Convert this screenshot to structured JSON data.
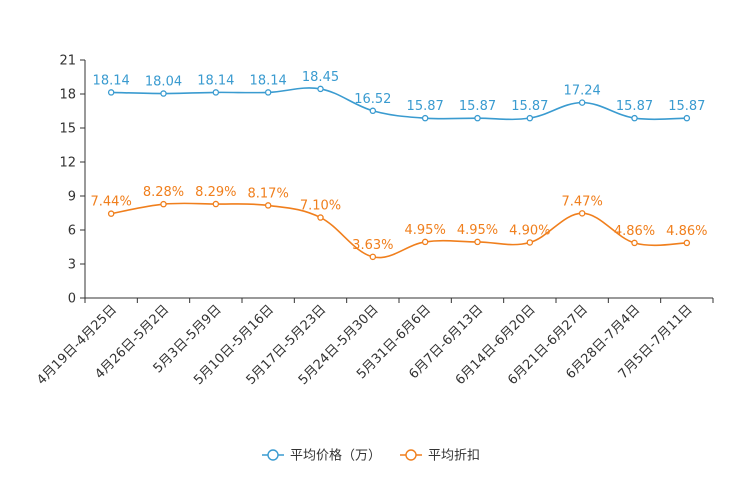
{
  "chart_data": {
    "type": "line",
    "title": "",
    "xlabel": "",
    "ylabel": "",
    "ylim": [
      0,
      21
    ],
    "yticks": [
      0,
      3,
      6,
      9,
      12,
      15,
      18,
      21
    ],
    "grid": false,
    "legend_position": "bottom-center",
    "categories": [
      "4月19日-4月25日",
      "4月26日-5月2日",
      "5月3日-5月9日",
      "5月10日-5月16日",
      "5月17日-5月23日",
      "5月24日-5月30日",
      "5月31日-6月6日",
      "6月7日-6月13日",
      "6月14日-6月20日",
      "6月21日-6月27日",
      "6月28日-7月4日",
      "7月5日-7月11日"
    ],
    "series": [
      {
        "name": "平均价格（万）",
        "color": "#3a9bd0",
        "values": [
          18.14,
          18.04,
          18.14,
          18.14,
          18.45,
          16.52,
          15.87,
          15.87,
          15.87,
          17.24,
          15.87,
          15.87
        ],
        "labels": [
          "18.14",
          "18.04",
          "18.14",
          "18.14",
          "18.45",
          "16.52",
          "15.87",
          "15.87",
          "15.87",
          "17.24",
          "15.87",
          "15.87"
        ]
      },
      {
        "name": "平均折扣",
        "color": "#f07f1d",
        "values": [
          7.44,
          8.28,
          8.29,
          8.17,
          7.1,
          3.63,
          4.95,
          4.95,
          4.9,
          7.47,
          4.86,
          4.86
        ],
        "labels": [
          "7.44%",
          "8.28%",
          "8.29%",
          "8.17%",
          "7.10%",
          "3.63%",
          "4.95%",
          "4.95%",
          "4.90%",
          "7.47%",
          "4.86%",
          "4.86%"
        ]
      }
    ]
  }
}
